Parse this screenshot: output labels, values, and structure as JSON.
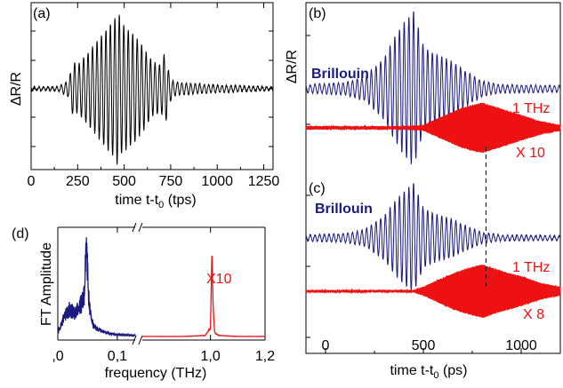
{
  "colors": {
    "black": "#000000",
    "blue": "#1a1a80",
    "red": "#ee1111",
    "axis": "#000000"
  },
  "chart_data": [
    {
      "id": "a",
      "type": "line",
      "panel_label": "(a)",
      "xlabel_main": "time t-t",
      "xlabel_sub": "0",
      "xlabel_tail": " (tps)",
      "ylabel": "ΔR/R",
      "xlim": [
        0,
        1300
      ],
      "xticks": [
        0,
        250,
        500,
        750,
        1000,
        1250
      ],
      "xtick_labels": [
        "0",
        "250",
        "500",
        "750",
        "1000",
        "1250"
      ],
      "y_tick_labels_shown": false,
      "series": [
        {
          "color": "#000000",
          "description_points": {
            "x": [
              0,
              150,
              200,
              225,
              250,
              300,
              350,
              400,
              450,
              470,
              480,
              500,
              550,
              600,
              650,
              700,
              720,
              735,
              760,
              800,
              900,
              1000,
              1100,
              1200,
              1300
            ],
            "amplitude": [
              0.02,
              0.03,
              0.1,
              0.35,
              0.3,
              0.45,
              0.6,
              0.75,
              0.9,
              1.0,
              0.85,
              0.8,
              0.7,
              0.55,
              0.35,
              0.3,
              0.5,
              0.25,
              0.1,
              0.08,
              0.06,
              0.05,
              0.04,
              0.03,
              0.02
            ]
          }
        }
      ]
    },
    {
      "id": "b",
      "type": "line",
      "panel_label": "(b)",
      "ylabel": "ΔR/R",
      "xlim": [
        -100,
        1200
      ],
      "annotations": [
        "Brillouin",
        "1 THz",
        "X 10"
      ],
      "series": [
        {
          "color": "#1a1a80",
          "label": "Brillouin",
          "description_points": {
            "x": [
              -100,
              100,
              200,
              300,
              350,
              400,
              450,
              500,
              550,
              600,
              650,
              700,
              800,
              900,
              1200
            ],
            "amplitude": [
              0.05,
              0.08,
              0.15,
              0.4,
              0.65,
              0.85,
              1.0,
              0.55,
              0.45,
              0.4,
              0.35,
              0.25,
              0.1,
              0.05,
              0.04
            ]
          }
        },
        {
          "color": "#ee1111",
          "label": "1 THz",
          "description_points": {
            "x": [
              -100,
              400,
              500,
              600,
              700,
              800,
              900,
              1000,
              1100,
              1200
            ],
            "amplitude": [
              0.05,
              0.05,
              0.1,
              0.45,
              0.8,
              1.0,
              0.75,
              0.5,
              0.25,
              0.1
            ]
          }
        }
      ]
    },
    {
      "id": "c",
      "type": "line",
      "panel_label": "(c)",
      "xlabel_main": "time t-t",
      "xlabel_sub": "0",
      "xlabel_tail": " (ps)",
      "xlim": [
        -100,
        1200
      ],
      "xticks": [
        0,
        500,
        1000
      ],
      "xtick_labels": [
        "0",
        "500",
        "1000"
      ],
      "minor_xticks": [
        250,
        750
      ],
      "annotations": [
        "Brillouin",
        "1 THz",
        "X 8"
      ],
      "dashed_marker_x": 820,
      "series": [
        {
          "color": "#1a1a80",
          "label": "Brillouin",
          "description_points": {
            "x": [
              -100,
              100,
              200,
              300,
              350,
              400,
              450,
              500,
              550,
              600,
              650,
              700,
              800,
              900,
              1200
            ],
            "amplitude": [
              0.05,
              0.08,
              0.15,
              0.4,
              0.65,
              0.85,
              1.0,
              0.55,
              0.45,
              0.4,
              0.35,
              0.25,
              0.1,
              0.05,
              0.04
            ]
          }
        },
        {
          "color": "#ee1111",
          "label": "1 THz",
          "description_points": {
            "x": [
              -100,
              450,
              500,
              600,
              700,
              800,
              900,
              1000,
              1100,
              1200
            ],
            "amplitude": [
              0.03,
              0.03,
              0.15,
              0.5,
              0.8,
              1.0,
              0.75,
              0.55,
              0.3,
              0.15
            ]
          }
        }
      ]
    },
    {
      "id": "d",
      "type": "line",
      "panel_label": "(d)",
      "xlabel": "frequency (THz)",
      "ylabel": "FT Amplitude",
      "axis_break": true,
      "left_segment": {
        "xlim": [
          0.0,
          0.13
        ],
        "xticks": [
          0.0,
          0.1
        ],
        "xtick_labels": [
          ",0",
          "0,1"
        ]
      },
      "right_segment": {
        "xlim": [
          0.75,
          1.2
        ],
        "xticks": [
          1.0,
          1.2
        ],
        "xtick_labels": [
          "1,0",
          "1,2"
        ]
      },
      "annotations": [
        "X10"
      ],
      "series": [
        {
          "color": "#1a1a80",
          "segment": "left",
          "x": [
            0.0,
            0.01,
            0.02,
            0.03,
            0.035,
            0.04,
            0.045,
            0.048,
            0.052,
            0.056,
            0.06,
            0.07,
            0.08,
            0.1,
            0.13
          ],
          "y": [
            0.05,
            0.2,
            0.3,
            0.25,
            0.3,
            0.35,
            0.5,
            1.0,
            0.4,
            0.2,
            0.12,
            0.08,
            0.05,
            0.03,
            0.02
          ]
        },
        {
          "color": "#ee1111",
          "segment": "right",
          "label": "X10",
          "x": [
            0.75,
            0.9,
            0.98,
            1.0,
            1.005,
            1.01,
            1.015,
            1.03,
            1.1,
            1.2
          ],
          "y": [
            0.01,
            0.01,
            0.02,
            0.1,
            0.85,
            0.3,
            0.05,
            0.02,
            0.01,
            0.01
          ]
        }
      ]
    }
  ]
}
